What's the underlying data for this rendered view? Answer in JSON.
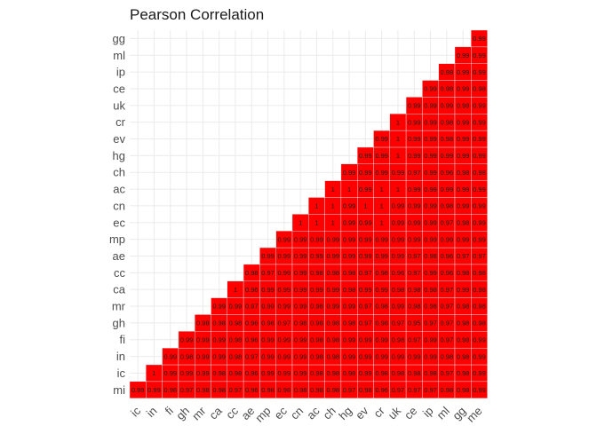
{
  "chart_data": {
    "type": "heatmap",
    "title": "Pearson Correlation",
    "xlabel": "",
    "ylabel": "",
    "x_labels": [
      "ic",
      "in",
      "fi",
      "gh",
      "mr",
      "ca",
      "cc",
      "ae",
      "mp",
      "ec",
      "cn",
      "ac",
      "ch",
      "hg",
      "ev",
      "cr",
      "uk",
      "ce",
      "ip",
      "ml",
      "gg",
      "me"
    ],
    "y_labels": [
      "mi",
      "ic",
      "in",
      "fi",
      "gh",
      "mr",
      "ca",
      "cc",
      "ae",
      "mp",
      "ec",
      "cn",
      "ac",
      "ch",
      "hg",
      "ev",
      "cr",
      "uk",
      "ce",
      "ip",
      "ml",
      "gg"
    ],
    "fill_color": "#ff0000",
    "grid": true,
    "rows": [
      [
        "0.99",
        "0.99",
        "0.98",
        "0.97",
        "0.98",
        "0.98",
        "0.97",
        "0.96",
        "0.98",
        "0.98",
        "0.98",
        "0.98",
        "0.98",
        "0.97",
        "0.98",
        "0.96",
        "0.97",
        "0.97",
        "0.97",
        "0.98",
        "0.98",
        "0.99"
      ],
      [
        "",
        "1",
        "0.99",
        "0.99",
        "0.99",
        "0.98",
        "0.98",
        "0.96",
        "0.99",
        "0.99",
        "0.99",
        "0.98",
        "0.98",
        "0.98",
        "0.99",
        "0.98",
        "0.98",
        "0.98",
        "0.98",
        "0.97",
        "0.98",
        "0.99"
      ],
      [
        "",
        "",
        "0.99",
        "0.98",
        "0.99",
        "0.99",
        "0.98",
        "0.97",
        "0.99",
        "0.99",
        "0.99",
        "0.98",
        "0.98",
        "0.99",
        "0.99",
        "0.99",
        "0.99",
        "0.99",
        "0.99",
        "0.98",
        "0.98",
        "0.99"
      ],
      [
        "",
        "",
        "",
        "0.99",
        "0.99",
        "0.99",
        "0.98",
        "0.96",
        "0.99",
        "0.99",
        "0.99",
        "0.98",
        "0.98",
        "0.99",
        "0.99",
        "0.99",
        "0.98",
        "0.97",
        "0.99",
        "0.97",
        "0.98",
        "0.99"
      ],
      [
        "",
        "",
        "",
        "",
        "0.98",
        "0.98",
        "0.98",
        "0.96",
        "0.98",
        "0.97",
        "0.98",
        "0.98",
        "0.98",
        "0.98",
        "0.97",
        "0.98",
        "0.97",
        "0.95",
        "0.97",
        "0.97",
        "0.98",
        "0.98"
      ],
      [
        "",
        "",
        "",
        "",
        "",
        "0.99",
        "0.99",
        "0.97",
        "0.99",
        "0.99",
        "0.99",
        "0.98",
        "0.99",
        "0.99",
        "0.97",
        "0.98",
        "0.99",
        "0.98",
        "0.98",
        "0.97",
        "0.98",
        "0.98"
      ],
      [
        "",
        "",
        "",
        "",
        "",
        "",
        "1",
        "0.96",
        "0.99",
        "0.99",
        "0.99",
        "0.99",
        "0.99",
        "0.98",
        "0.99",
        "0.99",
        "0.98",
        "0.98",
        "0.98",
        "0.97",
        "0.99",
        "0.98"
      ],
      [
        "",
        "",
        "",
        "",
        "",
        "",
        "",
        "0.98",
        "0.97",
        "0.99",
        "0.99",
        "0.98",
        "0.98",
        "0.98",
        "0.97",
        "0.98",
        "0.96",
        "0.97",
        "0.99",
        "0.96",
        "0.98",
        "0.98"
      ],
      [
        "",
        "",
        "",
        "",
        "",
        "",
        "",
        "",
        "0.99",
        "0.99",
        "0.99",
        "0.99",
        "0.99",
        "0.99",
        "0.99",
        "0.99",
        "0.99",
        "0.97",
        "0.98",
        "0.96",
        "0.97",
        "0.97"
      ],
      [
        "",
        "",
        "",
        "",
        "",
        "",
        "",
        "",
        "",
        "0.99",
        "0.99",
        "0.99",
        "0.99",
        "0.99",
        "0.99",
        "0.99",
        "0.99",
        "0.99",
        "0.99",
        "0.99",
        "0.99",
        "0.99"
      ],
      [
        "",
        "",
        "",
        "",
        "",
        "",
        "",
        "",
        "",
        "",
        "1",
        "1",
        "1",
        "0.99",
        "0.99",
        "1",
        "0.99",
        "0.99",
        "0.99",
        "0.97",
        "0.98",
        "0.99"
      ],
      [
        "",
        "",
        "",
        "",
        "",
        "",
        "",
        "",
        "",
        "",
        "",
        "1",
        "1",
        "0.99",
        "1",
        "1",
        "0.99",
        "0.99",
        "0.99",
        "0.98",
        "0.99",
        "0.99"
      ],
      [
        "",
        "",
        "",
        "",
        "",
        "",
        "",
        "",
        "",
        "",
        "",
        "",
        "1",
        "1",
        "0.99",
        "1",
        "1",
        "0.99",
        "0.99",
        "0.99",
        "0.99",
        "0.99"
      ],
      [
        "",
        "",
        "",
        "",
        "",
        "",
        "",
        "",
        "",
        "",
        "",
        "",
        "",
        "0.99",
        "0.99",
        "0.99",
        "0.99",
        "0.97",
        "0.99",
        "0.96",
        "0.98",
        "0.98"
      ],
      [
        "",
        "",
        "",
        "",
        "",
        "",
        "",
        "",
        "",
        "",
        "",
        "",
        "",
        "",
        "0.99",
        "0.99",
        "1",
        "0.99",
        "0.99",
        "0.99",
        "0.99",
        "0.99"
      ],
      [
        "",
        "",
        "",
        "",
        "",
        "",
        "",
        "",
        "",
        "",
        "",
        "",
        "",
        "",
        "",
        "0.99",
        "1",
        "0.99",
        "0.99",
        "0.98",
        "0.99",
        "0.99"
      ],
      [
        "",
        "",
        "",
        "",
        "",
        "",
        "",
        "",
        "",
        "",
        "",
        "",
        "",
        "",
        "",
        "",
        "1",
        "0.99",
        "0.99",
        "0.98",
        "0.99",
        "0.99"
      ],
      [
        "",
        "",
        "",
        "",
        "",
        "",
        "",
        "",
        "",
        "",
        "",
        "",
        "",
        "",
        "",
        "",
        "",
        "0.99",
        "0.99",
        "0.99",
        "0.98",
        "0.99"
      ],
      [
        "",
        "",
        "",
        "",
        "",
        "",
        "",
        "",
        "",
        "",
        "",
        "",
        "",
        "",
        "",
        "",
        "",
        "",
        "0.99",
        "0.98",
        "0.99",
        "0.98"
      ],
      [
        "",
        "",
        "",
        "",
        "",
        "",
        "",
        "",
        "",
        "",
        "",
        "",
        "",
        "",
        "",
        "",
        "",
        "",
        "",
        "0.98",
        "0.99",
        "0.99"
      ],
      [
        "",
        "",
        "",
        "",
        "",
        "",
        "",
        "",
        "",
        "",
        "",
        "",
        "",
        "",
        "",
        "",
        "",
        "",
        "",
        "",
        "0.99",
        "0.99"
      ],
      [
        "",
        "",
        "",
        "",
        "",
        "",
        "",
        "",
        "",
        "",
        "",
        "",
        "",
        "",
        "",
        "",
        "",
        "",
        "",
        "",
        "",
        "0.99"
      ]
    ]
  }
}
